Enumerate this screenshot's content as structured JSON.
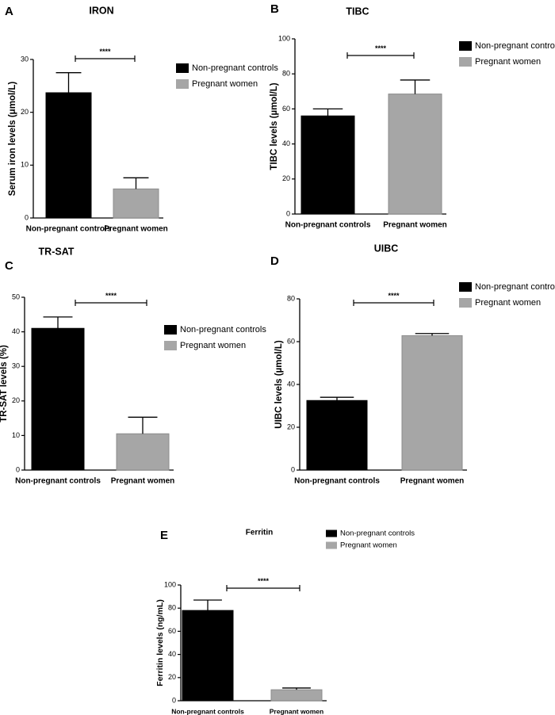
{
  "legend": {
    "labels": [
      "Non-pregnant controls",
      "Pregnant women"
    ],
    "colors": [
      "#000000",
      "#a6a6a6"
    ]
  },
  "significance": "****",
  "chart_data": [
    {
      "panel": "A",
      "type": "bar",
      "title": "IRON",
      "ylabel": "Serum iron levels (μmol/L)",
      "categories": [
        "Non-pregnant controls",
        "Pregnant women"
      ],
      "values": [
        23.7,
        5.5
      ],
      "errors": [
        3.8,
        2.1
      ],
      "ylim": [
        0,
        30
      ],
      "yticks": [
        "0",
        "10",
        "20",
        "30"
      ],
      "legend_position": "right",
      "significance": "****"
    },
    {
      "panel": "B",
      "type": "bar",
      "title": "TIBC",
      "ylabel": "TIBC levels (µmol/L)",
      "categories": [
        "Non-pregnant controls",
        "Pregnant women"
      ],
      "values": [
        56,
        68.5
      ],
      "errors": [
        4,
        8
      ],
      "ylim": [
        0,
        100
      ],
      "yticks": [
        "0",
        "20",
        "40",
        "60",
        "80",
        "100"
      ],
      "legend_position": "right",
      "significance": "****"
    },
    {
      "panel": "C",
      "type": "bar",
      "title": "TR-SAT",
      "ylabel": "TR-SAT levels (%)",
      "categories": [
        "Non-pregnant controls",
        "Pregnant women"
      ],
      "values": [
        41,
        10.5
      ],
      "errors": [
        3.3,
        4.8
      ],
      "ylim": [
        0,
        50
      ],
      "yticks": [
        "0",
        "10",
        "20",
        "30",
        "40",
        "50"
      ],
      "legend_position": "right",
      "significance": "****"
    },
    {
      "panel": "D",
      "type": "bar",
      "title": "UIBC",
      "ylabel": "UIBC levels (µmol/L)",
      "categories": [
        "Non-pregnant controls",
        "Pregnant women"
      ],
      "values": [
        32.5,
        62.8
      ],
      "errors": [
        1.5,
        1
      ],
      "ylim": [
        0,
        80
      ],
      "yticks": [
        "0",
        "20",
        "40",
        "60",
        "80"
      ],
      "legend_position": "right",
      "significance": "****"
    },
    {
      "panel": "E",
      "type": "bar",
      "title": "Ferritin",
      "ylabel": "Ferritin levels (ng/mL)",
      "categories": [
        "Non-pregnant controls",
        "Pregnant women"
      ],
      "values": [
        78,
        9.5
      ],
      "errors": [
        9,
        1.5
      ],
      "ylim": [
        0,
        100
      ],
      "yticks": [
        "0",
        "20",
        "40",
        "60",
        "80",
        "100"
      ],
      "legend_position": "top-right",
      "significance": "****"
    }
  ]
}
